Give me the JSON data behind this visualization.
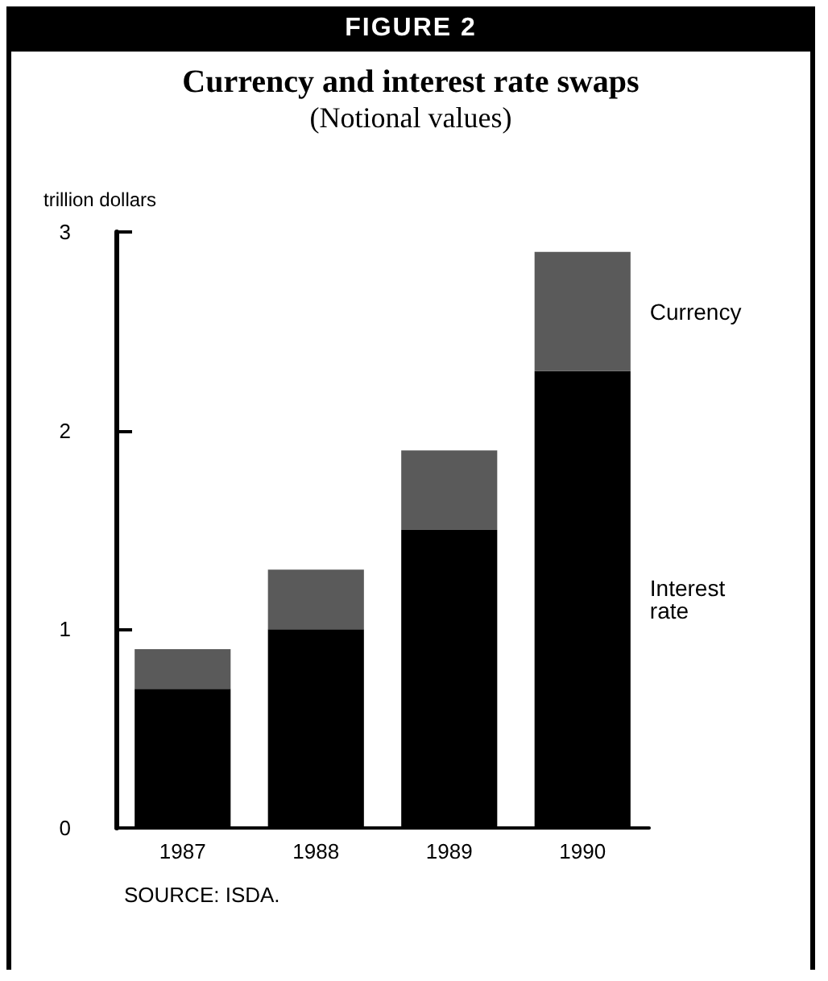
{
  "chart_data": {
    "type": "bar",
    "title": "Currency and interest rate swaps",
    "subtitle": "(Notional values)",
    "ylabel": "trillion dollars",
    "annotations": [
      "FIGURE 2",
      "SOURCE: ISDA."
    ],
    "categories": [
      "1987",
      "1988",
      "1989",
      "1990"
    ],
    "stacked": true,
    "series": [
      {
        "name": "Interest rate",
        "color": "#000000",
        "values": [
          0.7,
          1.0,
          1.5,
          2.3
        ]
      },
      {
        "name": "Currency",
        "color": "#5a5a5a",
        "values": [
          0.2,
          0.3,
          0.4,
          0.6
        ]
      }
    ],
    "ylim": [
      0,
      3
    ],
    "yticks": [
      0,
      1,
      2,
      3
    ],
    "grid": false,
    "legend": false
  }
}
